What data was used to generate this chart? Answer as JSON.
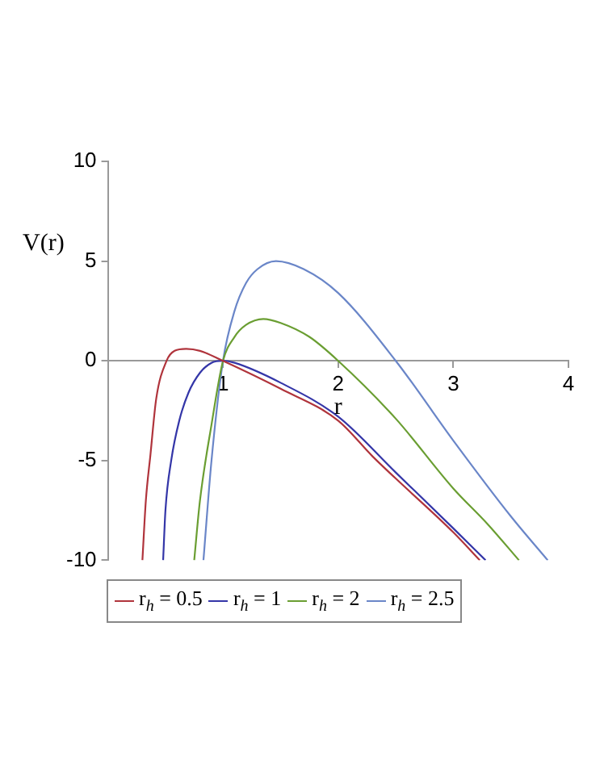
{
  "chart_data": {
    "type": "line",
    "xlabel": "r",
    "ylabel": "V(r)",
    "xlim": [
      0,
      4
    ],
    "ylim": [
      -10,
      10
    ],
    "xticks": [
      1,
      2,
      3,
      4
    ],
    "yticks": [
      -10,
      -5,
      0,
      5,
      10
    ],
    "grid": false,
    "legend": "bottom",
    "marker": "none",
    "line_style": "solid",
    "series": [
      {
        "name": "r$_{h}$ = 0.5",
        "color": "#b0343c",
        "x": [
          0.3,
          0.33,
          0.37,
          0.42,
          0.51,
          0.58,
          0.68,
          0.8,
          1.0,
          1.5,
          2.0,
          2.3,
          2.5,
          3.0,
          3.23
        ],
        "values": [
          -10,
          -7,
          -4.7,
          -1.9,
          0,
          0.5,
          0.6,
          0.5,
          0,
          -1.4,
          -3.0,
          -4.8,
          -5.9,
          -8.6,
          -10
        ]
      },
      {
        "name": "r$_{h}$ = 1",
        "color": "#3436a8",
        "x": [
          0.48,
          0.5,
          0.55,
          0.62,
          0.7,
          0.8,
          0.9,
          1.0,
          1.1,
          1.5,
          2.0,
          2.5,
          3.0,
          3.28
        ],
        "values": [
          -10,
          -7.5,
          -5,
          -3,
          -1.6,
          -0.6,
          -0.1,
          0,
          -0.1,
          -1.1,
          -2.8,
          -5.6,
          -8.4,
          -10
        ]
      },
      {
        "name": "r$_{h}$ = 2",
        "color": "#6a9e32",
        "x": [
          0.75,
          0.8,
          0.9,
          1.0,
          1.1,
          1.2,
          1.35,
          1.5,
          1.75,
          2.0,
          2.5,
          3.0,
          3.3,
          3.57
        ],
        "values": [
          -10,
          -7,
          -3.2,
          0,
          1.2,
          1.8,
          2.1,
          1.9,
          1.2,
          0,
          -2.9,
          -6.4,
          -8.2,
          -10
        ]
      },
      {
        "name": "r$_{h}$ = 2.5",
        "color": "#6a86c8",
        "x": [
          0.83,
          0.9,
          1.0,
          1.1,
          1.2,
          1.3,
          1.46,
          1.7,
          2.0,
          2.5,
          3.0,
          3.5,
          3.82
        ],
        "values": [
          -10,
          -5,
          0,
          2.5,
          3.9,
          4.6,
          5,
          4.6,
          3.4,
          0,
          -4,
          -7.8,
          -10
        ]
      }
    ]
  }
}
